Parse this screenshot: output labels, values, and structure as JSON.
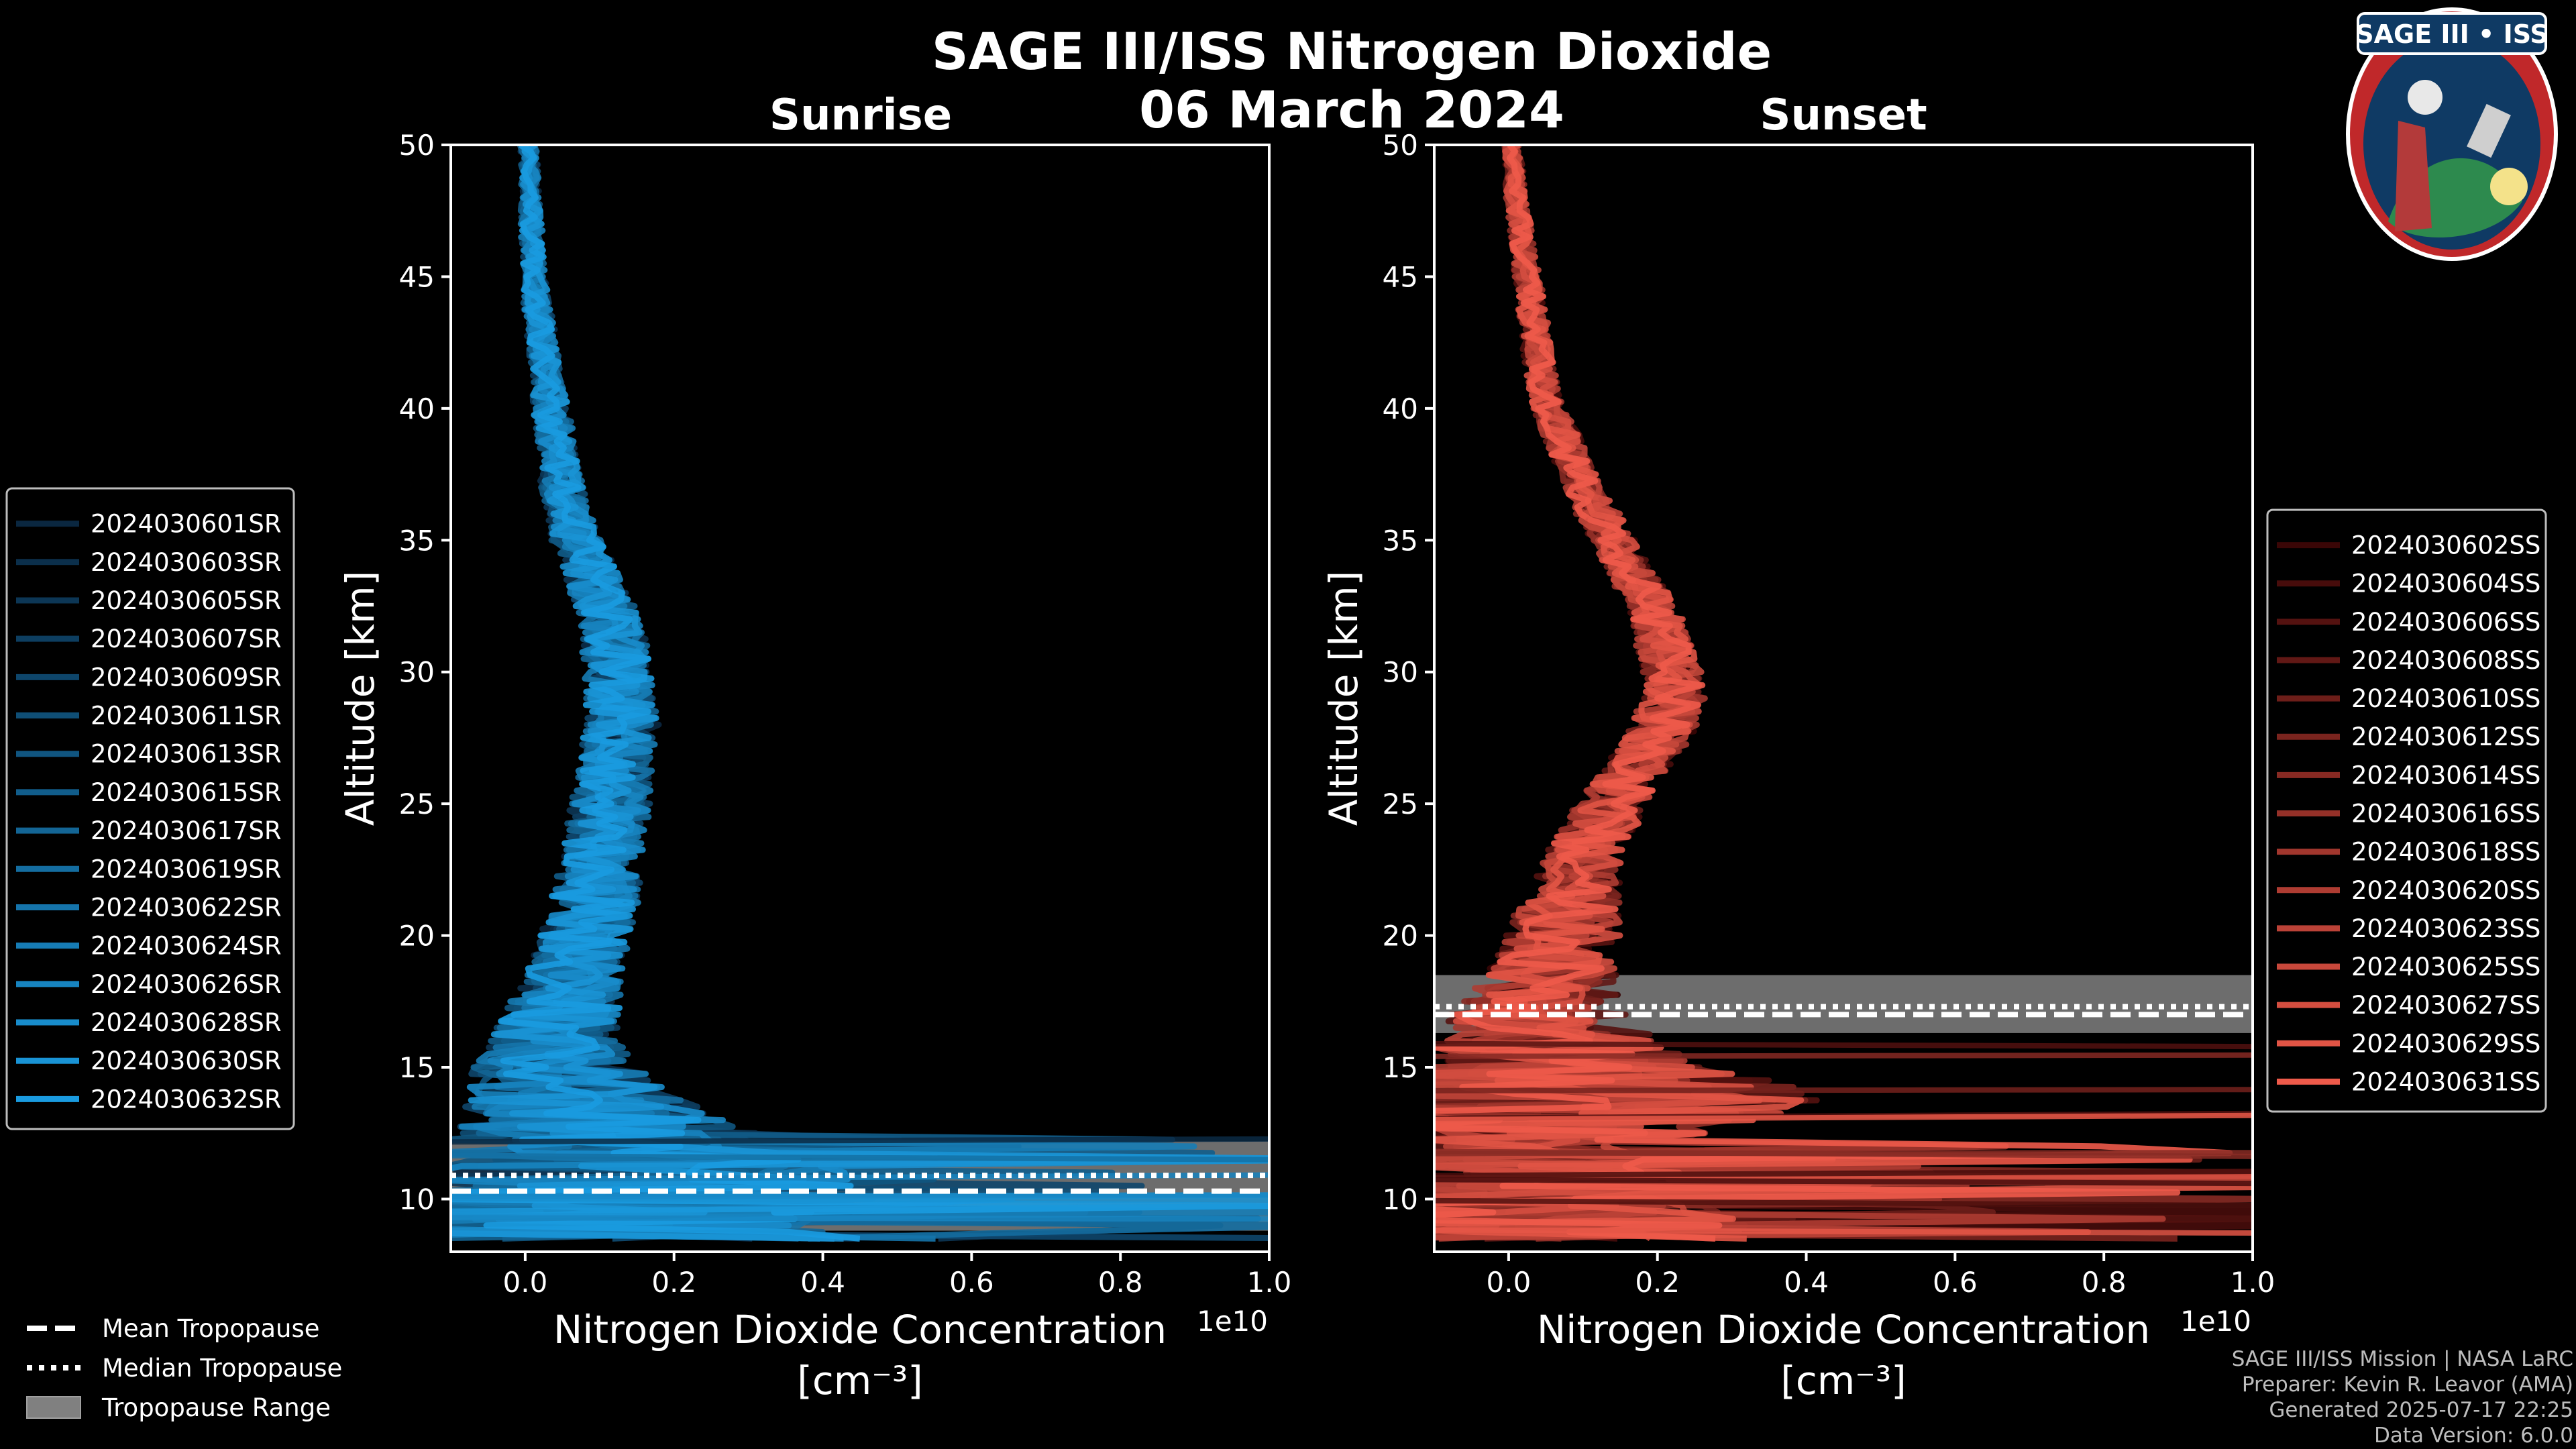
{
  "figure": {
    "title": "SAGE III/ISS Nitrogen Dioxide",
    "date": "06 March 2024"
  },
  "credits": [
    "SAGE III/ISS Mission | NASA LaRC",
    "Preparer: Kevin R. Leavor (AMA)",
    "Generated 2025-07-17 22:25",
    "Data Version: 6.0.0"
  ],
  "logo": {
    "text": "SAGE III • ISS"
  },
  "tropopause_legend": [
    {
      "label": "Mean Tropopause",
      "style": "dashed"
    },
    {
      "label": "Median Tropopause",
      "style": "dotted"
    },
    {
      "label": "Tropopause Range",
      "style": "patch"
    }
  ],
  "chart_data": [
    {
      "type": "line",
      "panel": "sunrise",
      "subtitle": "Sunrise",
      "xlabel_line1": "Nitrogen Dioxide Concentration",
      "xlabel_line2": "[cm⁻³]",
      "ylabel": "Altitude [km]",
      "x_offset_label": "1e10",
      "xlim": [
        -0.1,
        1.0
      ],
      "ylim": [
        8,
        50
      ],
      "xticks": [
        0.0,
        0.2,
        0.4,
        0.6,
        0.8,
        1.0
      ],
      "yticks": [
        10,
        15,
        20,
        25,
        30,
        35,
        40,
        45,
        50
      ],
      "color_dark": "#0a2740",
      "color_light": "#1a9be0",
      "tropopause": {
        "min": 8.8,
        "max": 12.2,
        "mean": 10.3,
        "median": 10.9
      },
      "series_names": [
        "2024030601SR",
        "2024030603SR",
        "2024030605SR",
        "2024030607SR",
        "2024030609SR",
        "2024030611SR",
        "2024030613SR",
        "2024030615SR",
        "2024030617SR",
        "2024030619SR",
        "2024030622SR",
        "2024030624SR",
        "2024030626SR",
        "2024030628SR",
        "2024030630SR",
        "2024030632SR"
      ],
      "profile": {
        "alt": [
          8.5,
          9,
          10,
          11,
          12,
          13,
          14,
          15,
          16,
          17,
          18,
          19,
          20,
          21,
          22,
          23,
          24,
          25,
          26,
          27,
          28,
          29,
          30,
          31,
          32,
          33,
          34,
          35,
          36,
          37,
          38,
          39,
          40,
          41,
          42,
          43,
          44,
          45,
          46,
          47,
          48,
          49,
          50
        ],
        "mean": [
          0.05,
          0.08,
          0.12,
          0.14,
          0.12,
          0.09,
          0.06,
          0.04,
          0.04,
          0.05,
          0.06,
          0.07,
          0.08,
          0.09,
          0.1,
          0.105,
          0.11,
          0.115,
          0.12,
          0.125,
          0.13,
          0.128,
          0.125,
          0.12,
          0.115,
          0.1,
          0.085,
          0.07,
          0.06,
          0.05,
          0.045,
          0.04,
          0.035,
          0.03,
          0.025,
          0.02,
          0.015,
          0.012,
          0.01,
          0.008,
          0.007,
          0.006,
          0.005
        ],
        "spread": [
          0.4,
          0.4,
          0.35,
          0.3,
          0.25,
          0.18,
          0.14,
          0.11,
          0.09,
          0.08,
          0.07,
          0.065,
          0.06,
          0.06,
          0.06,
          0.055,
          0.055,
          0.055,
          0.05,
          0.05,
          0.05,
          0.05,
          0.045,
          0.045,
          0.04,
          0.04,
          0.035,
          0.035,
          0.03,
          0.03,
          0.025,
          0.025,
          0.025,
          0.02,
          0.02,
          0.02,
          0.018,
          0.015,
          0.015,
          0.015,
          0.012,
          0.012,
          0.012
        ]
      }
    },
    {
      "type": "line",
      "panel": "sunset",
      "subtitle": "Sunset",
      "xlabel_line1": "Nitrogen Dioxide Concentration",
      "xlabel_line2": "[cm⁻³]",
      "ylabel": "Altitude [km]",
      "x_offset_label": "1e10",
      "xlim": [
        -0.1,
        1.0
      ],
      "ylim": [
        8,
        50
      ],
      "xticks": [
        0.0,
        0.2,
        0.4,
        0.6,
        0.8,
        1.0
      ],
      "yticks": [
        10,
        15,
        20,
        25,
        30,
        35,
        40,
        45,
        50
      ],
      "color_dark": "#3a0606",
      "color_light": "#ee5a4a",
      "tropopause": {
        "min": 16.3,
        "max": 18.5,
        "mean": 17.0,
        "median": 17.3
      },
      "series_names": [
        "2024030602SS",
        "2024030604SS",
        "2024030606SS",
        "2024030608SS",
        "2024030610SS",
        "2024030612SS",
        "2024030614SS",
        "2024030616SS",
        "2024030618SS",
        "2024030620SS",
        "2024030623SS",
        "2024030625SS",
        "2024030627SS",
        "2024030629SS",
        "2024030631SS"
      ],
      "profile": {
        "alt": [
          8.5,
          9,
          10,
          11,
          12,
          13,
          14,
          15,
          16,
          17,
          18,
          19,
          20,
          21,
          22,
          23,
          24,
          25,
          26,
          27,
          28,
          29,
          30,
          31,
          32,
          33,
          34,
          35,
          36,
          37,
          38,
          39,
          40,
          41,
          42,
          43,
          44,
          45,
          46,
          47,
          48,
          49,
          50
        ],
        "mean": [
          0.02,
          0.02,
          0.03,
          0.03,
          0.04,
          0.05,
          0.06,
          0.06,
          0.05,
          0.04,
          0.05,
          0.06,
          0.07,
          0.08,
          0.09,
          0.1,
          0.12,
          0.14,
          0.16,
          0.19,
          0.21,
          0.22,
          0.22,
          0.21,
          0.2,
          0.18,
          0.16,
          0.14,
          0.12,
          0.1,
          0.085,
          0.07,
          0.055,
          0.045,
          0.04,
          0.035,
          0.03,
          0.025,
          0.02,
          0.015,
          0.01,
          0.008,
          0.006
        ],
        "spread": [
          0.3,
          0.3,
          0.25,
          0.2,
          0.15,
          0.3,
          0.4,
          0.2,
          0.15,
          0.12,
          0.1,
          0.08,
          0.08,
          0.07,
          0.06,
          0.055,
          0.05,
          0.05,
          0.045,
          0.045,
          0.045,
          0.045,
          0.04,
          0.04,
          0.035,
          0.035,
          0.03,
          0.03,
          0.03,
          0.025,
          0.025,
          0.025,
          0.022,
          0.02,
          0.02,
          0.02,
          0.018,
          0.018,
          0.015,
          0.015,
          0.015,
          0.012,
          0.012
        ]
      }
    }
  ]
}
